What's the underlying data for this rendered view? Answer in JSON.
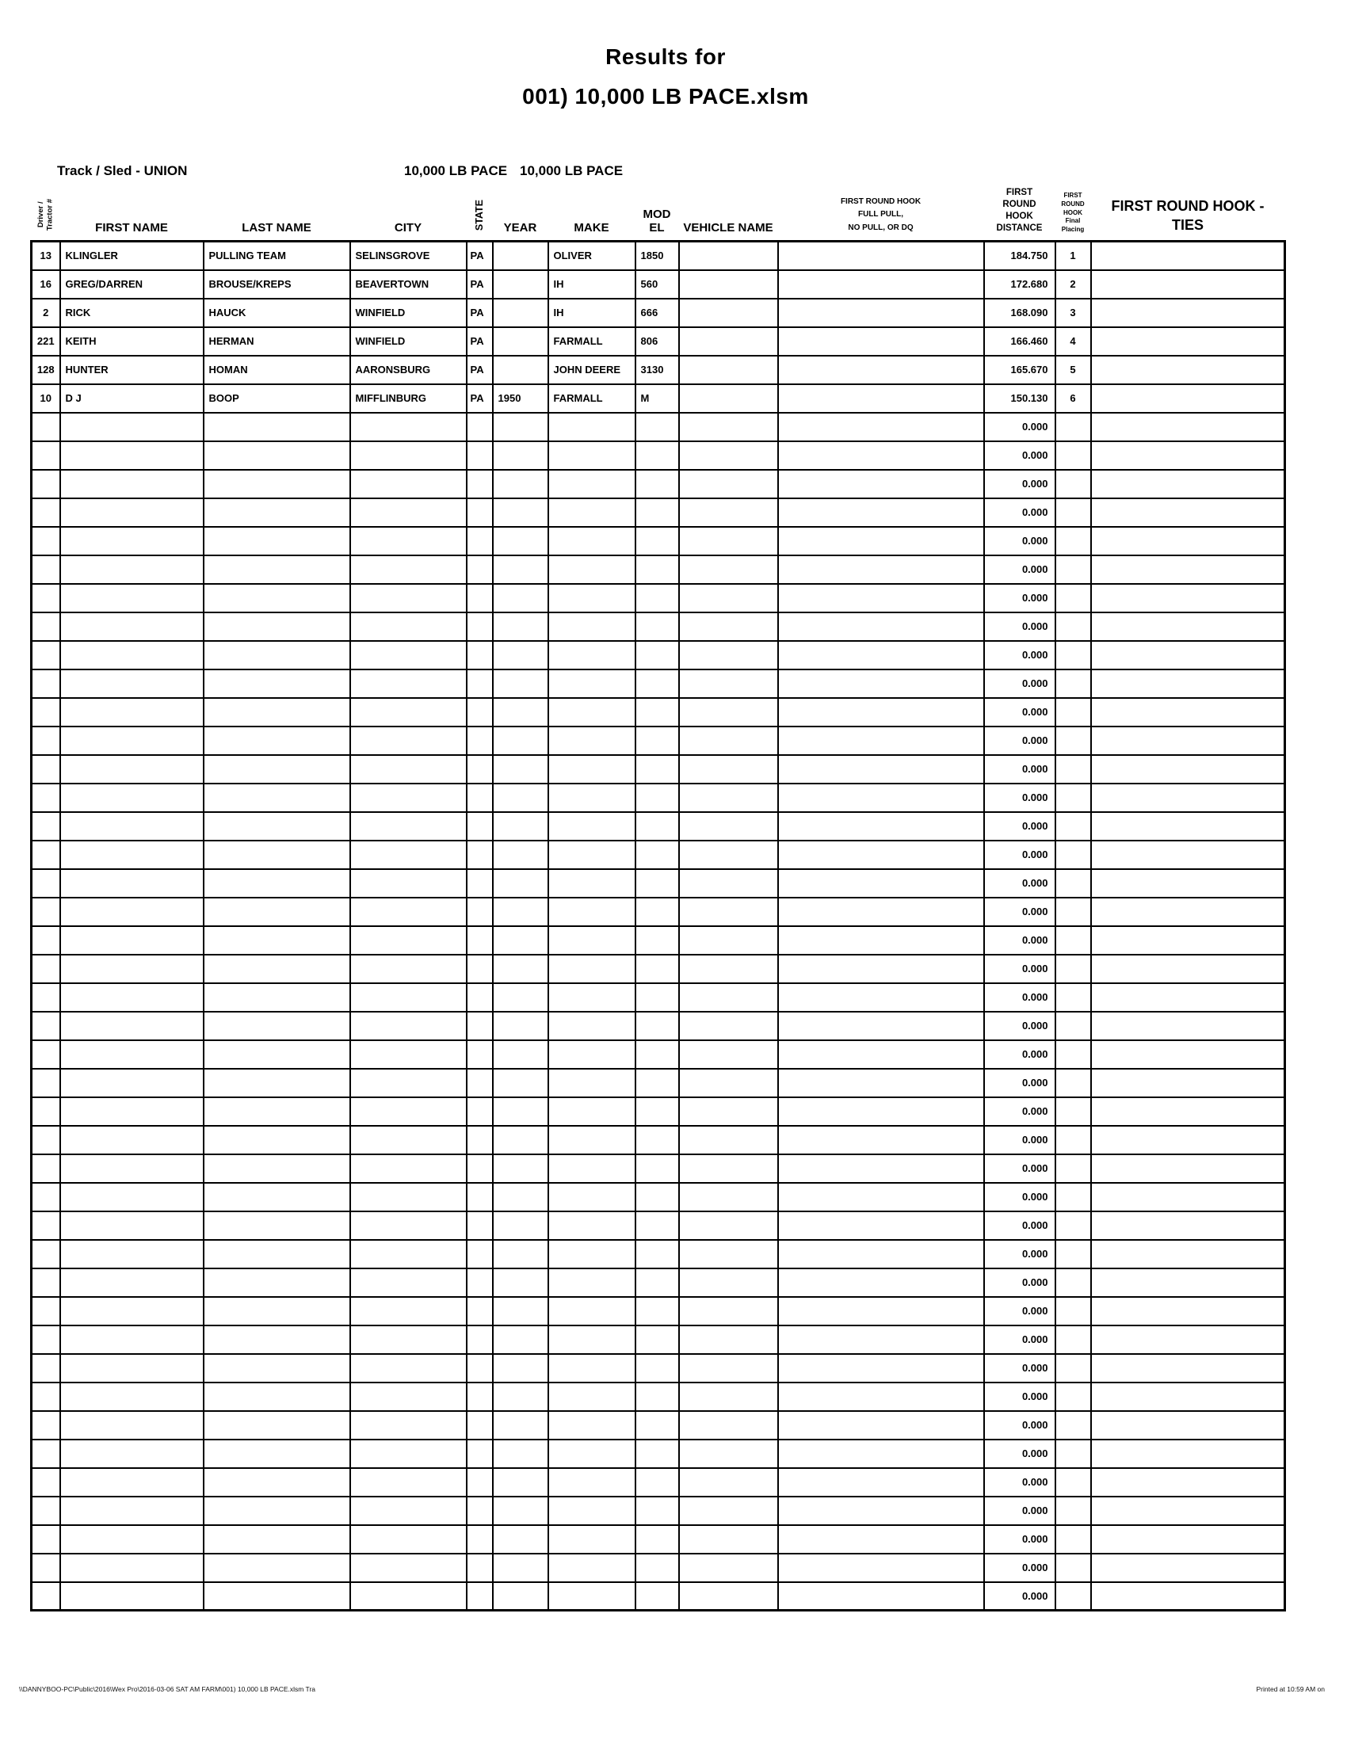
{
  "title": {
    "line1": "Results for",
    "line2": "001) 10,000 LB PACE.xlsm"
  },
  "meta": {
    "track_sled": "Track / Sled - UNION",
    "class_label_1": "10,000 LB PACE",
    "class_label_2": "10,000 LB PACE"
  },
  "table": {
    "columns": [
      {
        "key": "driver",
        "label": "Driver /\nTractor #"
      },
      {
        "key": "first",
        "label": "FIRST NAME"
      },
      {
        "key": "last",
        "label": "LAST NAME"
      },
      {
        "key": "city",
        "label": "CITY"
      },
      {
        "key": "state",
        "label": "STATE"
      },
      {
        "key": "year",
        "label": "YEAR"
      },
      {
        "key": "make",
        "label": "MAKE"
      },
      {
        "key": "model",
        "label": "MOD EL"
      },
      {
        "key": "vehicle",
        "label": "VEHICLE NAME"
      },
      {
        "key": "fullpull",
        "label": "FIRST ROUND HOOK\nFULL PULL,\nNO PULL, OR DQ"
      },
      {
        "key": "distance",
        "label": "FIRST\nROUND\nHOOK\nDISTANCE"
      },
      {
        "key": "placing",
        "label": "FIRST\nROUND\nHOOK\nFinal\nPlacing"
      },
      {
        "key": "ties",
        "label": "FIRST ROUND HOOK -\nTIES"
      }
    ],
    "rows": [
      {
        "driver": "13",
        "first": "KLINGLER",
        "last": "PULLING TEAM",
        "city": "SELINSGROVE",
        "state": "PA",
        "year": "",
        "make": "OLIVER",
        "model": "1850",
        "vehicle": "",
        "fullpull": "",
        "distance": "184.750",
        "placing": "1",
        "ties": ""
      },
      {
        "driver": "16",
        "first": "GREG/DARREN",
        "last": "BROUSE/KREPS",
        "city": "BEAVERTOWN",
        "state": "PA",
        "year": "",
        "make": "IH",
        "model": "560",
        "vehicle": "",
        "fullpull": "",
        "distance": "172.680",
        "placing": "2",
        "ties": ""
      },
      {
        "driver": "2",
        "first": "RICK",
        "last": "HAUCK",
        "city": "WINFIELD",
        "state": "PA",
        "year": "",
        "make": "IH",
        "model": "666",
        "vehicle": "",
        "fullpull": "",
        "distance": "168.090",
        "placing": "3",
        "ties": ""
      },
      {
        "driver": "221",
        "first": "KEITH",
        "last": "HERMAN",
        "city": "WINFIELD",
        "state": "PA",
        "year": "",
        "make": "FARMALL",
        "model": "806",
        "vehicle": "",
        "fullpull": "",
        "distance": "166.460",
        "placing": "4",
        "ties": ""
      },
      {
        "driver": "128",
        "first": "HUNTER",
        "last": "HOMAN",
        "city": "AARONSBURG",
        "state": "PA",
        "year": "",
        "make": "JOHN DEERE",
        "model": "3130",
        "vehicle": "",
        "fullpull": "",
        "distance": "165.670",
        "placing": "5",
        "ties": ""
      },
      {
        "driver": "10",
        "first": "D J",
        "last": "BOOP",
        "city": "MIFFLINBURG",
        "state": "PA",
        "year": "1950",
        "make": "FARMALL",
        "model": "M",
        "vehicle": "",
        "fullpull": "",
        "distance": "150.130",
        "placing": "6",
        "ties": ""
      }
    ],
    "empty_row_count": 42,
    "empty_row": {
      "driver": "",
      "first": "",
      "last": "",
      "city": "",
      "state": "",
      "year": "",
      "make": "",
      "model": "",
      "vehicle": "",
      "fullpull": "",
      "distance": "0.000",
      "placing": "",
      "ties": ""
    }
  },
  "footer": {
    "left": "\\\\DANNYBOO-PC\\Public\\2016\\Wex Pro\\2016-03-06 SAT AM FARM\\001) 10,000 LB PACE.xlsm   Tra",
    "right": "Printed at 10:59 AM on"
  }
}
